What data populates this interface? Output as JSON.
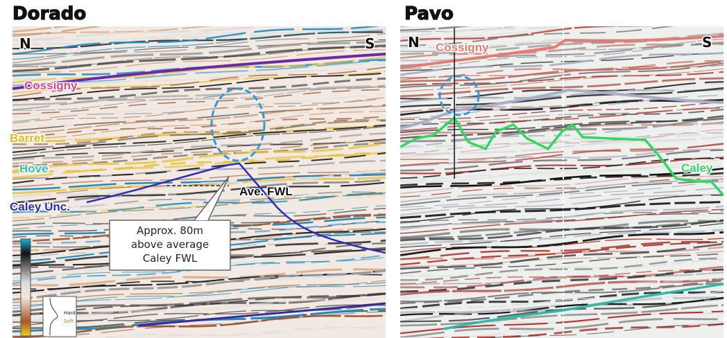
{
  "panels": [
    {
      "title": "Dorado",
      "north": "N",
      "south": "S",
      "horizons": [
        "Cossigny",
        "Barret",
        "Hove",
        "Caley Unc."
      ],
      "fwl_label": "Ave. FWL",
      "callout": [
        "Approx. 80m",
        "above average",
        "Caley FWL"
      ],
      "legend": [
        "Hard",
        "Soft"
      ]
    },
    {
      "title": "Pavo",
      "north": "N",
      "south": "S",
      "horizons": [
        "Cossigny",
        "Caley"
      ]
    }
  ]
}
